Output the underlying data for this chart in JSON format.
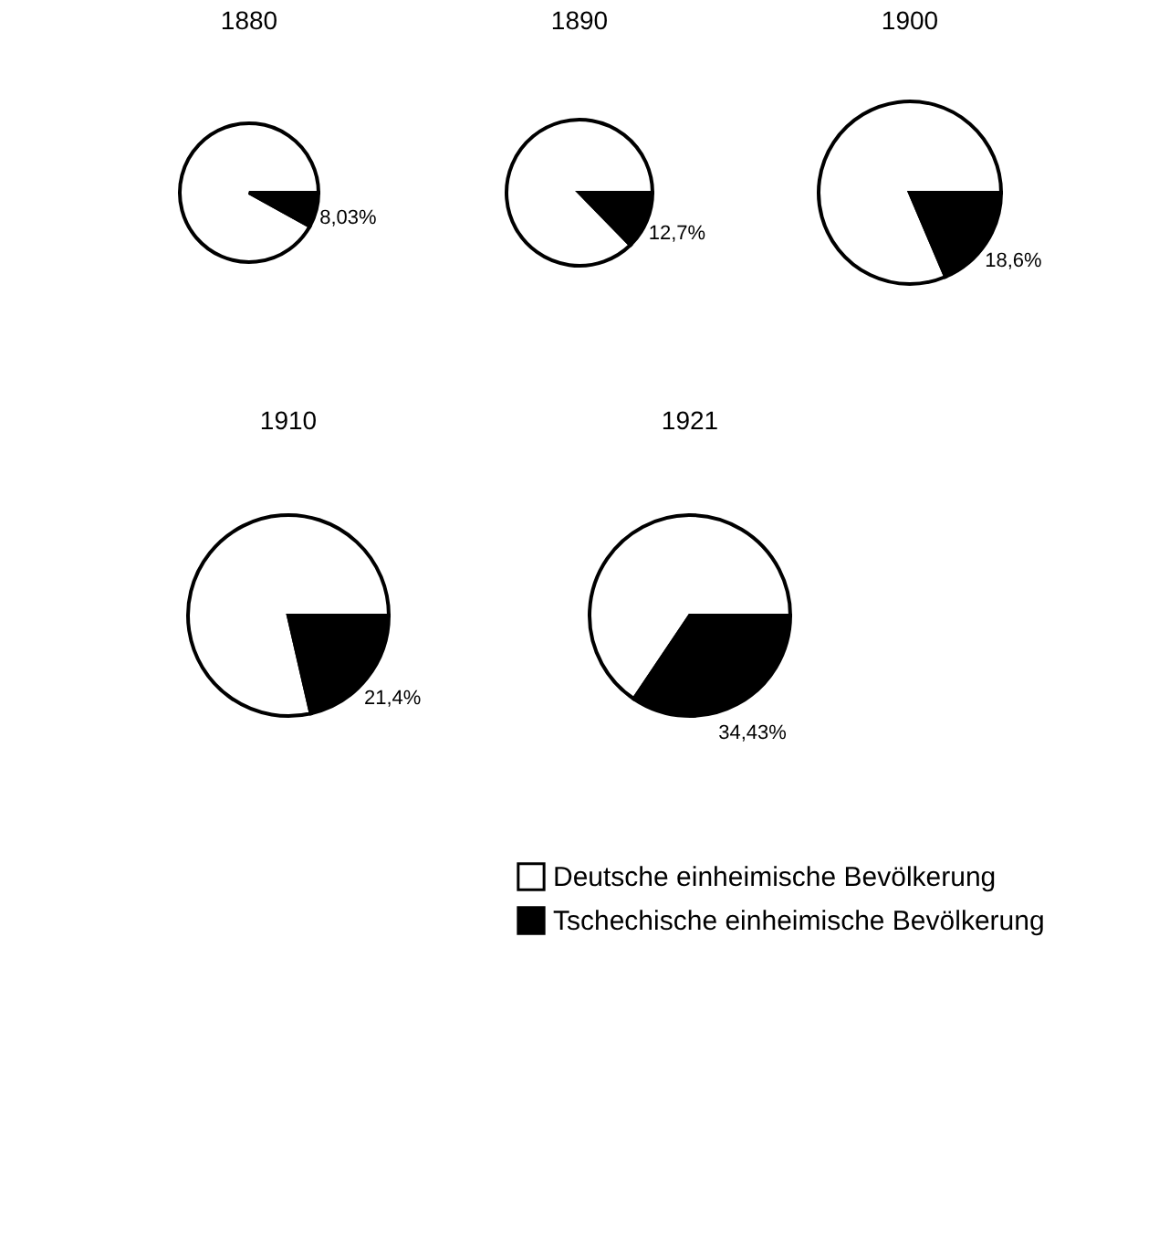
{
  "chart_data": [
    {
      "type": "pie",
      "title": "1880",
      "categories": [
        null,
        null
      ],
      "values": [
        91.97,
        8.03
      ],
      "colors": [
        "#ffffff",
        "#000000"
      ],
      "value_labels": [
        null,
        "8,03%"
      ]
    },
    {
      "type": "pie",
      "title": "1890",
      "categories": [
        null,
        null
      ],
      "values": [
        87.3,
        12.7
      ],
      "colors": [
        "#ffffff",
        "#000000"
      ],
      "value_labels": [
        null,
        "12,7%"
      ]
    },
    {
      "type": "pie",
      "title": "1900",
      "categories": [
        null,
        null
      ],
      "values": [
        81.4,
        18.6
      ],
      "colors": [
        "#ffffff",
        "#000000"
      ],
      "value_labels": [
        null,
        "18,6%"
      ]
    },
    {
      "type": "pie",
      "title": "1910",
      "categories": [
        null,
        null
      ],
      "values": [
        78.6,
        21.4
      ],
      "colors": [
        "#ffffff",
        "#000000"
      ],
      "value_labels": [
        null,
        "21,4%"
      ]
    },
    {
      "type": "pie",
      "title": "1921",
      "categories": [
        "Deutsche einheimische Bevölkerung",
        "Tschechische einheimische Bevölkerung"
      ],
      "values": [
        65.57,
        34.43
      ],
      "colors": [
        "#ffffff",
        "#000000"
      ],
      "value_labels": [
        null,
        "34,43%"
      ],
      "legend": "bottom"
    }
  ]
}
